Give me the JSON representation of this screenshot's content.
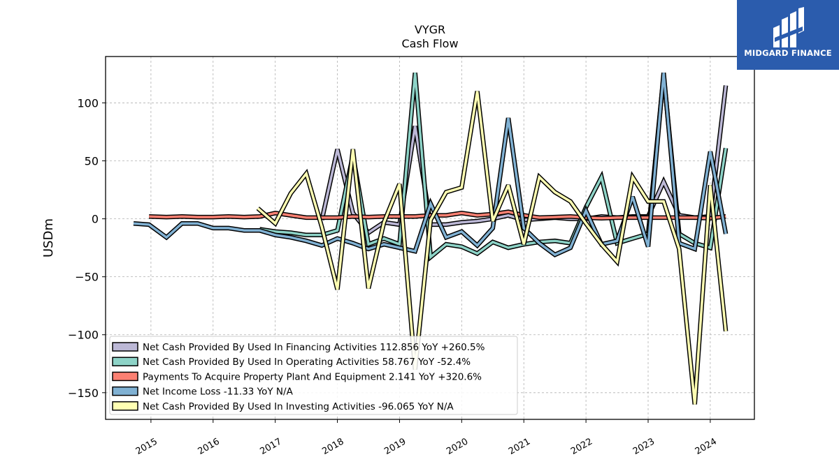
{
  "logo": {
    "brand": "MIDGARD FINANCE"
  },
  "chart_data": {
    "type": "line",
    "title": "VYGR",
    "subtitle": "Cash Flow",
    "xlabel": "",
    "ylabel": "USDm",
    "xlim": [
      2014.27,
      2024.71
    ],
    "ylim": [
      -173,
      140
    ],
    "y_ticks": [
      100,
      50,
      0,
      -50,
      -100,
      -150
    ],
    "y_tick_labels": [
      "100",
      "50",
      "0",
      "−50",
      "−100",
      "−150"
    ],
    "x_ticks": [
      2015,
      2016,
      2017,
      2018,
      2019,
      2020,
      2021,
      2022,
      2023,
      2024
    ],
    "x_tick_labels": [
      "2015",
      "2016",
      "2017",
      "2018",
      "2019",
      "2020",
      "2021",
      "2022",
      "2023",
      "2024"
    ],
    "grid": true,
    "legend_position": "lower-left",
    "series": [
      {
        "name": "Net Cash Provided By Used In Financing Activities",
        "legend": "Net Cash Provided By Used In Financing Activities  112.856 YoY +260.5%",
        "color": "#bcb8d6",
        "points": [
          [
            2017.75,
            -1
          ],
          [
            2018.0,
            60
          ],
          [
            2018.25,
            5
          ],
          [
            2018.5,
            -12
          ],
          [
            2018.75,
            -3
          ],
          [
            2019.0,
            -5
          ],
          [
            2019.25,
            80
          ],
          [
            2019.5,
            -5
          ],
          [
            2019.75,
            -5
          ],
          [
            2020.0,
            -3
          ],
          [
            2020.25,
            -2
          ],
          [
            2020.5,
            0
          ],
          [
            2020.75,
            3
          ],
          [
            2021.0,
            -1
          ],
          [
            2021.25,
            0
          ],
          [
            2021.5,
            1
          ],
          [
            2021.75,
            0
          ],
          [
            2022.0,
            0
          ],
          [
            2022.25,
            2
          ],
          [
            2022.5,
            1
          ],
          [
            2022.75,
            2
          ],
          [
            2023.0,
            2
          ],
          [
            2023.25,
            32
          ],
          [
            2023.5,
            3
          ],
          [
            2023.75,
            1
          ],
          [
            2024.0,
            2
          ],
          [
            2024.25,
            115
          ]
        ]
      },
      {
        "name": "Net Cash Provided By Used In Operating Activities",
        "legend": "Net Cash Provided By Used In Operating Activities  58.767 YoY -52.4%",
        "color": "#8dd3c7",
        "points": [
          [
            2016.75,
            -9
          ],
          [
            2017.0,
            -11
          ],
          [
            2017.25,
            -12
          ],
          [
            2017.5,
            -14
          ],
          [
            2017.75,
            -14
          ],
          [
            2018.0,
            -10
          ],
          [
            2018.25,
            55
          ],
          [
            2018.5,
            -22
          ],
          [
            2018.75,
            -17
          ],
          [
            2019.0,
            -22
          ],
          [
            2019.25,
            126
          ],
          [
            2019.5,
            -33
          ],
          [
            2019.75,
            -22
          ],
          [
            2020.0,
            -24
          ],
          [
            2020.25,
            -30
          ],
          [
            2020.5,
            -20
          ],
          [
            2020.75,
            -25
          ],
          [
            2021.0,
            -22
          ],
          [
            2021.25,
            -20
          ],
          [
            2021.5,
            -19
          ],
          [
            2021.75,
            -21
          ],
          [
            2022.0,
            10
          ],
          [
            2022.25,
            36
          ],
          [
            2022.5,
            -21
          ],
          [
            2022.75,
            -17
          ],
          [
            2023.0,
            -13
          ],
          [
            2023.25,
            124
          ],
          [
            2023.5,
            -13
          ],
          [
            2023.75,
            -21
          ],
          [
            2024.0,
            -25
          ],
          [
            2024.25,
            61
          ]
        ]
      },
      {
        "name": "Payments To Acquire Property Plant And Equipment",
        "legend": "Payments To Acquire Property Plant And Equipment  2.141 YoY +320.6%",
        "color": "#fb8072",
        "points": [
          [
            2014.97,
            2
          ],
          [
            2015.25,
            1.5
          ],
          [
            2015.5,
            2
          ],
          [
            2015.75,
            1.5
          ],
          [
            2016.0,
            1.5
          ],
          [
            2016.25,
            2
          ],
          [
            2016.5,
            1.5
          ],
          [
            2016.75,
            2
          ],
          [
            2017.0,
            5
          ],
          [
            2017.25,
            3
          ],
          [
            2017.5,
            1
          ],
          [
            2017.75,
            1
          ],
          [
            2018.0,
            1
          ],
          [
            2018.25,
            2
          ],
          [
            2018.5,
            1.5
          ],
          [
            2018.75,
            2
          ],
          [
            2019.0,
            2
          ],
          [
            2019.25,
            2
          ],
          [
            2019.5,
            3
          ],
          [
            2019.75,
            3
          ],
          [
            2020.0,
            5
          ],
          [
            2020.25,
            3
          ],
          [
            2020.5,
            4
          ],
          [
            2020.75,
            6
          ],
          [
            2021.0,
            3
          ],
          [
            2021.25,
            1
          ],
          [
            2021.5,
            1.5
          ],
          [
            2021.75,
            2
          ],
          [
            2022.0,
            1
          ],
          [
            2022.25,
            0.5
          ],
          [
            2022.5,
            1
          ],
          [
            2022.75,
            1
          ],
          [
            2023.0,
            1
          ],
          [
            2023.25,
            1
          ],
          [
            2023.5,
            1
          ],
          [
            2023.75,
            1
          ],
          [
            2024.0,
            0.5
          ],
          [
            2024.25,
            2.1
          ]
        ]
      },
      {
        "name": "Net Income Loss",
        "legend": "Net Income Loss  -11.33 YoY N/A",
        "color": "#80b1d3",
        "points": [
          [
            2014.72,
            -4
          ],
          [
            2014.97,
            -5
          ],
          [
            2015.25,
            -16
          ],
          [
            2015.5,
            -4
          ],
          [
            2015.75,
            -4
          ],
          [
            2016.0,
            -8
          ],
          [
            2016.25,
            -8
          ],
          [
            2016.5,
            -10
          ],
          [
            2016.75,
            -10
          ],
          [
            2017.0,
            -14
          ],
          [
            2017.25,
            -16
          ],
          [
            2017.5,
            -19
          ],
          [
            2017.75,
            -23
          ],
          [
            2018.0,
            -17
          ],
          [
            2018.25,
            -21
          ],
          [
            2018.5,
            -26
          ],
          [
            2018.75,
            -22
          ],
          [
            2019.0,
            -25
          ],
          [
            2019.25,
            -28
          ],
          [
            2019.5,
            13
          ],
          [
            2019.75,
            -16
          ],
          [
            2020.0,
            -11
          ],
          [
            2020.25,
            -23
          ],
          [
            2020.5,
            -8
          ],
          [
            2020.75,
            87
          ],
          [
            2021.0,
            -8
          ],
          [
            2021.25,
            -21
          ],
          [
            2021.5,
            -31
          ],
          [
            2021.75,
            -25
          ],
          [
            2022.0,
            7
          ],
          [
            2022.25,
            -22
          ],
          [
            2022.5,
            -19
          ],
          [
            2022.75,
            19
          ],
          [
            2023.0,
            -24
          ],
          [
            2023.25,
            126
          ],
          [
            2023.5,
            -21
          ],
          [
            2023.75,
            -26
          ],
          [
            2024.0,
            58
          ],
          [
            2024.25,
            -13
          ]
        ]
      },
      {
        "name": "Net Cash Provided By Used In Investing Activities",
        "legend": "Net Cash Provided By Used In Investing Activities  -96.065 YoY N/A",
        "color": "#ffffb3",
        "points": [
          [
            2016.72,
            9
          ],
          [
            2017.0,
            -4
          ],
          [
            2017.25,
            22
          ],
          [
            2017.5,
            39
          ],
          [
            2017.75,
            -7
          ],
          [
            2018.0,
            -61
          ],
          [
            2018.25,
            60
          ],
          [
            2018.5,
            -60
          ],
          [
            2018.75,
            -3
          ],
          [
            2019.0,
            30
          ],
          [
            2019.25,
            -130
          ],
          [
            2019.5,
            -1
          ],
          [
            2019.75,
            23
          ],
          [
            2020.0,
            27
          ],
          [
            2020.25,
            110
          ],
          [
            2020.5,
            -2
          ],
          [
            2020.75,
            29
          ],
          [
            2021.0,
            -22
          ],
          [
            2021.25,
            36
          ],
          [
            2021.5,
            23
          ],
          [
            2021.75,
            15
          ],
          [
            2022.0,
            -4
          ],
          [
            2022.25,
            -22
          ],
          [
            2022.5,
            -37
          ],
          [
            2022.75,
            36
          ],
          [
            2023.0,
            15
          ],
          [
            2023.25,
            15
          ],
          [
            2023.5,
            -26
          ],
          [
            2023.75,
            -160
          ],
          [
            2024.0,
            29
          ],
          [
            2024.25,
            -97
          ]
        ]
      }
    ]
  }
}
